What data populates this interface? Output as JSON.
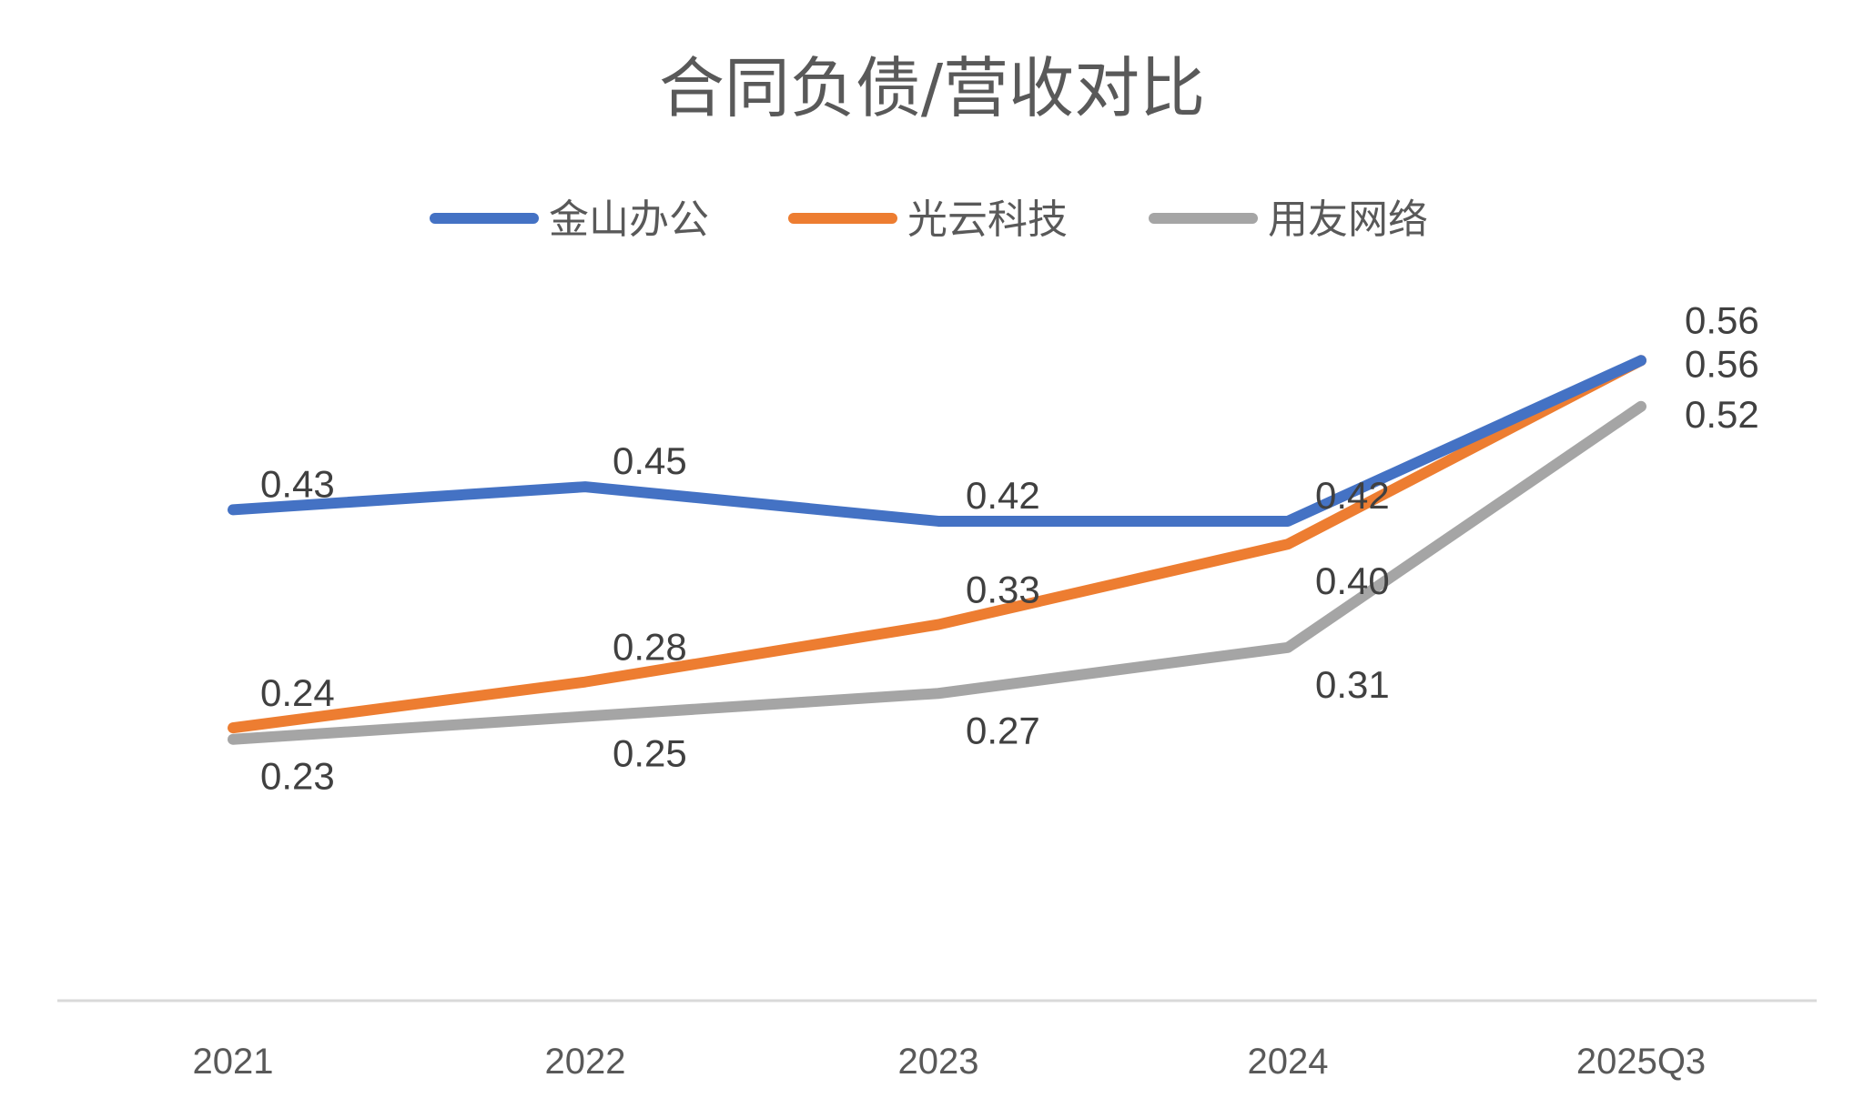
{
  "chart_data": {
    "type": "line",
    "title": "合同负债/营收对比",
    "categories": [
      "2021",
      "2022",
      "2023",
      "2024",
      "2025Q3"
    ],
    "series": [
      {
        "name": "金山办公",
        "color": "#4472C4",
        "values": [
          0.43,
          0.45,
          0.42,
          0.42,
          0.56
        ]
      },
      {
        "name": "光云科技",
        "color": "#ED7D31",
        "values": [
          0.24,
          0.28,
          0.33,
          0.4,
          0.56
        ]
      },
      {
        "name": "用友网络",
        "color": "#A5A5A5",
        "values": [
          0.23,
          0.25,
          0.27,
          0.31,
          0.52
        ]
      }
    ],
    "ylim": [
      0,
      0.8
    ],
    "grid": false,
    "legend": "top",
    "data_labels": true
  }
}
